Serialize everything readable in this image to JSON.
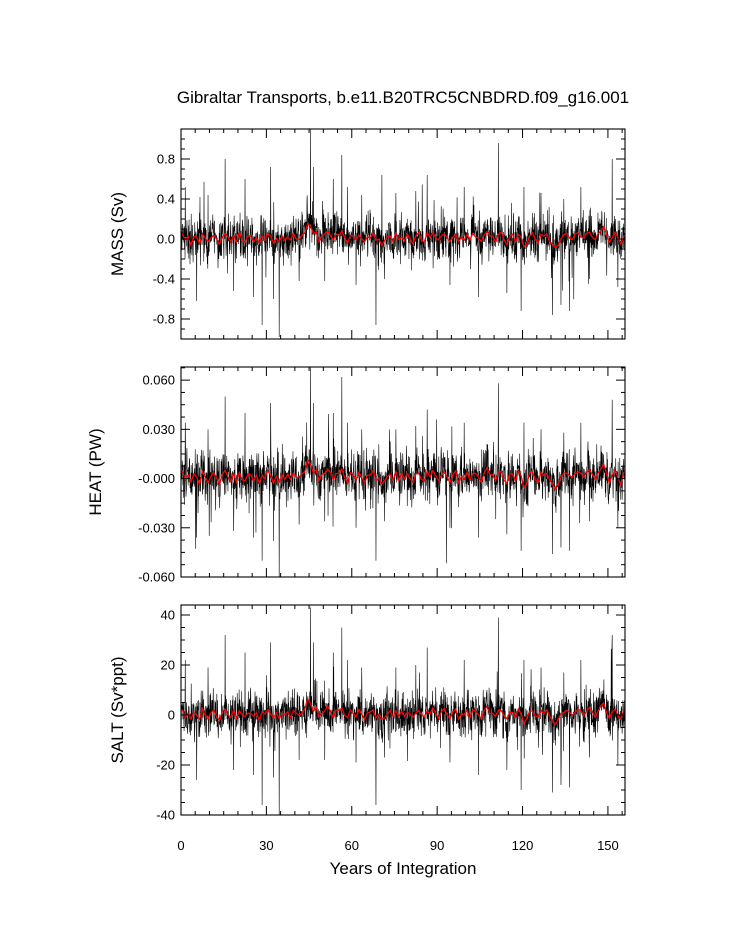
{
  "title": "Gibraltar Transports, b.e11.B20TRC5CNBDRD.f09_g16.001",
  "chart_data": {
    "type": "line",
    "title": "Gibraltar Transports, b.e11.B20TRC5CNBDRD.f09_g16.001",
    "xlabel": "Years of Integration",
    "xlim": [
      0,
      156
    ],
    "xticks": [
      0,
      30,
      60,
      90,
      120,
      150
    ],
    "xtick_labels": [
      "0",
      "30",
      "60",
      "90",
      "120",
      "150"
    ],
    "line_colors": {
      "raw": "#000000",
      "smoothed": "#ff0000"
    },
    "panels": [
      {
        "ylabel": "MASS (Sv)",
        "ylim": [
          -1.0,
          1.1
        ],
        "yticks": [
          0.8,
          0.4,
          0.0,
          -0.4,
          -0.8
        ],
        "ytick_labels": [
          "0.8",
          "0.4",
          "0.0",
          "-0.4",
          "-0.8"
        ],
        "base": [
          0.05,
          -0.02,
          0.03,
          -0.05,
          0.02,
          0.01,
          -0.04,
          0.06,
          0.0,
          -0.03,
          0.02,
          0.04,
          -0.01,
          -0.05,
          0.03,
          0.05,
          0.01,
          -0.02,
          0.04,
          -0.04,
          0.06,
          0.0,
          -0.03,
          0.02,
          0.03,
          -0.02,
          0.01,
          -0.05,
          0.04,
          0.0,
          0.05,
          0.02,
          -0.03,
          0.01,
          -0.04,
          0.03,
          0.0,
          0.02,
          -0.02,
          0.06,
          0.01,
          -0.01,
          0.03,
          0.07,
          0.16,
          0.12,
          0.05,
          0.08,
          -0.03,
          0.02,
          0.05,
          0.09,
          0.03,
          -0.02,
          0.06,
          0.04,
          0.07,
          0.01,
          -0.03,
          0.04,
          0.02,
          -0.01,
          0.05,
          0.0,
          -0.04,
          0.03,
          0.02,
          0.05,
          -0.02,
          0.01,
          -0.06,
          -0.03,
          0.02,
          0.04,
          -0.03,
          0.05,
          0.0,
          0.03,
          -0.02,
          0.04,
          0.01,
          -0.04,
          0.02,
          0.06,
          0.0,
          -0.03,
          0.05,
          0.02,
          0.07,
          0.01,
          -0.02,
          0.04,
          0.06,
          0.0,
          -0.03,
          0.03,
          0.05,
          -0.04,
          0.02,
          0.0,
          0.04,
          -0.02,
          0.06,
          0.03,
          0.0,
          -0.03,
          0.05,
          0.08,
          0.02,
          0.03,
          -0.02,
          0.04,
          0.06,
          0.0,
          -0.05,
          0.02,
          0.04,
          -0.02,
          0.05,
          0.01,
          -0.08,
          -0.04,
          0.03,
          0.05,
          0.0,
          -0.03,
          0.04,
          0.02,
          0.06,
          -0.02,
          -0.06,
          -0.09,
          -0.05,
          0.0,
          0.03,
          0.06,
          0.02,
          -0.01,
          0.04,
          0.07,
          0.03,
          0.0,
          0.05,
          0.08,
          0.02,
          -0.02,
          0.05,
          0.09,
          0.12,
          0.04,
          -0.03,
          0.02,
          0.06,
          0.01,
          -0.04,
          0.03,
          0.05,
          0.02
        ],
        "spikes": [
          [
            1,
            0.52
          ],
          [
            5,
            -0.62
          ],
          [
            9,
            0.44
          ],
          [
            15,
            0.8
          ],
          [
            18,
            -0.52
          ],
          [
            22,
            0.6
          ],
          [
            25,
            -0.58
          ],
          [
            28,
            -0.86
          ],
          [
            31,
            0.72
          ],
          [
            32,
            -0.6
          ],
          [
            34,
            -0.98
          ],
          [
            41,
            -0.42
          ],
          [
            45,
            1.1
          ],
          [
            46,
            0.72
          ],
          [
            50,
            -0.42
          ],
          [
            53,
            0.6
          ],
          [
            56,
            0.84
          ],
          [
            58,
            0.52
          ],
          [
            61,
            -0.46
          ],
          [
            63,
            0.44
          ],
          [
            68,
            -0.86
          ],
          [
            71,
            -0.4
          ],
          [
            75,
            0.46
          ],
          [
            82,
            0.48
          ],
          [
            86,
            0.64
          ],
          [
            94,
            -0.46
          ],
          [
            99,
            0.52
          ],
          [
            104,
            -0.58
          ],
          [
            111,
            0.96
          ],
          [
            114,
            -0.54
          ],
          [
            119,
            -0.72
          ],
          [
            120,
            0.52
          ],
          [
            126,
            0.46
          ],
          [
            130,
            -0.76
          ],
          [
            133,
            -0.66
          ],
          [
            134,
            0.4
          ],
          [
            136,
            -0.72
          ],
          [
            140,
            0.52
          ],
          [
            143,
            -0.4
          ],
          [
            151,
            0.8
          ],
          [
            153,
            -0.48
          ]
        ],
        "noise": 0.1,
        "smooth": 0.04
      },
      {
        "ylabel": "HEAT (PW)",
        "ylim": [
          -0.06,
          0.068
        ],
        "yticks": [
          0.06,
          0.03,
          0.0,
          -0.03,
          -0.06
        ],
        "ytick_labels": [
          "0.060",
          "0.030",
          "-0.000",
          "-0.030",
          "-0.060"
        ],
        "base": [
          0.004,
          -0.001,
          0.003,
          -0.002,
          0.002,
          0.001,
          -0.003,
          0.004,
          0.0,
          -0.002,
          0.002,
          0.003,
          0.0,
          -0.003,
          0.003,
          0.004,
          0.001,
          -0.001,
          0.003,
          -0.003,
          0.004,
          0.0,
          -0.002,
          0.002,
          0.003,
          -0.001,
          0.001,
          -0.003,
          0.003,
          0.0,
          0.004,
          0.002,
          -0.002,
          0.001,
          -0.003,
          0.003,
          0.0,
          0.002,
          -0.001,
          0.004,
          0.001,
          0.0,
          0.003,
          0.005,
          0.011,
          0.008,
          0.004,
          0.006,
          -0.002,
          0.002,
          0.004,
          0.006,
          0.003,
          -0.001,
          0.004,
          0.003,
          0.005,
          0.001,
          -0.002,
          0.003,
          0.002,
          0.0,
          0.004,
          0.0,
          -0.003,
          0.003,
          0.002,
          0.004,
          -0.001,
          0.001,
          -0.004,
          -0.002,
          0.002,
          0.003,
          -0.002,
          0.004,
          0.0,
          0.003,
          -0.001,
          0.003,
          0.001,
          -0.003,
          0.002,
          0.004,
          0.0,
          -0.002,
          0.004,
          0.002,
          0.005,
          0.001,
          -0.001,
          0.003,
          0.004,
          0.0,
          -0.002,
          0.003,
          0.004,
          -0.003,
          0.002,
          0.0,
          0.003,
          -0.001,
          0.004,
          0.003,
          0.0,
          -0.002,
          0.004,
          0.006,
          0.002,
          0.003,
          -0.001,
          0.003,
          0.004,
          0.0,
          -0.003,
          0.002,
          0.003,
          -0.001,
          0.004,
          0.001,
          -0.005,
          -0.003,
          0.003,
          0.004,
          0.0,
          -0.002,
          0.003,
          0.002,
          0.004,
          -0.001,
          -0.004,
          -0.006,
          -0.003,
          0.0,
          0.003,
          0.004,
          0.002,
          0.0,
          0.003,
          0.005,
          0.003,
          0.0,
          0.004,
          0.006,
          0.002,
          -0.001,
          0.004,
          0.006,
          0.008,
          0.003,
          -0.002,
          0.002,
          0.004,
          0.001,
          -0.003,
          0.003,
          0.004,
          0.002
        ],
        "spikes": [
          [
            1,
            0.034
          ],
          [
            5,
            -0.036
          ],
          [
            9,
            0.03
          ],
          [
            15,
            0.05
          ],
          [
            18,
            -0.032
          ],
          [
            22,
            0.04
          ],
          [
            25,
            -0.036
          ],
          [
            28,
            -0.05
          ],
          [
            31,
            0.046
          ],
          [
            32,
            -0.038
          ],
          [
            34,
            -0.062
          ],
          [
            41,
            -0.028
          ],
          [
            45,
            0.068
          ],
          [
            46,
            0.046
          ],
          [
            50,
            -0.026
          ],
          [
            53,
            0.04
          ],
          [
            56,
            0.062
          ],
          [
            58,
            0.034
          ],
          [
            61,
            -0.03
          ],
          [
            63,
            0.03
          ],
          [
            68,
            -0.05
          ],
          [
            71,
            -0.026
          ],
          [
            75,
            0.03
          ],
          [
            82,
            0.032
          ],
          [
            86,
            0.042
          ],
          [
            94,
            -0.03
          ],
          [
            99,
            0.034
          ],
          [
            104,
            -0.036
          ],
          [
            111,
            0.058
          ],
          [
            114,
            -0.034
          ],
          [
            119,
            -0.044
          ],
          [
            120,
            0.034
          ],
          [
            126,
            0.03
          ],
          [
            130,
            -0.046
          ],
          [
            133,
            -0.042
          ],
          [
            134,
            0.028
          ],
          [
            136,
            -0.044
          ],
          [
            140,
            0.034
          ],
          [
            143,
            -0.026
          ],
          [
            151,
            0.048
          ],
          [
            153,
            -0.03
          ]
        ],
        "noise": 0.007,
        "smooth": 0.003
      },
      {
        "ylabel": "SALT (Sv*ppt)",
        "ylim": [
          -40,
          44
        ],
        "yticks": [
          40,
          20,
          0,
          -20,
          -40
        ],
        "ytick_labels": [
          "40",
          "20",
          "0",
          "-20",
          "-40"
        ],
        "base": [
          1.8,
          -0.8,
          1.1,
          -1.9,
          0.7,
          0.4,
          -1.5,
          2.2,
          0.0,
          -1.1,
          0.8,
          1.5,
          -0.4,
          -1.9,
          1.1,
          1.9,
          0.4,
          -0.8,
          1.5,
          -1.5,
          2.2,
          0.0,
          -1.1,
          0.8,
          1.1,
          -0.8,
          0.4,
          -1.9,
          1.5,
          0.0,
          1.9,
          0.8,
          -1.1,
          0.4,
          -1.5,
          1.1,
          0.0,
          0.8,
          -0.8,
          2.2,
          0.4,
          -0.4,
          1.1,
          2.6,
          6.0,
          4.5,
          1.9,
          3.0,
          -1.1,
          0.8,
          1.9,
          3.4,
          1.1,
          -0.8,
          2.2,
          1.5,
          2.6,
          0.4,
          -1.1,
          1.5,
          0.8,
          -0.4,
          1.9,
          0.0,
          -1.5,
          1.1,
          0.8,
          1.9,
          -0.8,
          0.4,
          -2.2,
          -1.1,
          0.8,
          1.5,
          -1.1,
          1.9,
          0.0,
          1.1,
          -0.8,
          1.5,
          0.4,
          -1.5,
          0.8,
          2.2,
          0.0,
          -1.1,
          1.9,
          0.8,
          2.6,
          0.4,
          -0.8,
          1.5,
          2.2,
          0.0,
          -1.1,
          1.1,
          1.9,
          -1.5,
          0.8,
          0.0,
          1.5,
          -0.8,
          2.2,
          1.1,
          0.0,
          -1.1,
          1.9,
          3.0,
          0.8,
          1.1,
          -0.8,
          1.5,
          2.2,
          0.0,
          -1.9,
          0.8,
          1.5,
          -0.8,
          1.9,
          0.4,
          -3.0,
          -1.5,
          1.1,
          1.9,
          0.0,
          -1.1,
          1.5,
          0.8,
          2.2,
          -0.8,
          -2.2,
          -3.4,
          -1.9,
          0.0,
          1.1,
          2.2,
          0.8,
          -0.4,
          1.5,
          2.6,
          1.1,
          0.0,
          1.9,
          3.0,
          0.8,
          -0.8,
          1.9,
          3.4,
          4.5,
          1.5,
          -1.1,
          0.8,
          2.2,
          0.4,
          -1.5,
          1.1,
          1.9,
          0.8
        ],
        "spikes": [
          [
            1,
            22
          ],
          [
            5,
            -26
          ],
          [
            9,
            19
          ],
          [
            15,
            32
          ],
          [
            18,
            -22
          ],
          [
            22,
            25
          ],
          [
            25,
            -24
          ],
          [
            28,
            -36
          ],
          [
            31,
            29
          ],
          [
            32,
            -25
          ],
          [
            34,
            -41
          ],
          [
            41,
            -18
          ],
          [
            45,
            43
          ],
          [
            46,
            29
          ],
          [
            50,
            -18
          ],
          [
            53,
            25
          ],
          [
            56,
            35
          ],
          [
            58,
            22
          ],
          [
            61,
            -19
          ],
          [
            63,
            19
          ],
          [
            68,
            -36
          ],
          [
            71,
            -17
          ],
          [
            75,
            19
          ],
          [
            82,
            20
          ],
          [
            86,
            27
          ],
          [
            94,
            -19
          ],
          [
            99,
            22
          ],
          [
            104,
            -24
          ],
          [
            111,
            39
          ],
          [
            114,
            -22
          ],
          [
            119,
            -30
          ],
          [
            120,
            22
          ],
          [
            126,
            19
          ],
          [
            130,
            -31
          ],
          [
            133,
            -28
          ],
          [
            134,
            17
          ],
          [
            136,
            -29
          ],
          [
            140,
            22
          ],
          [
            143,
            -17
          ],
          [
            151,
            32
          ],
          [
            153,
            -20
          ]
        ],
        "noise": 4.0,
        "smooth": 1.6
      }
    ]
  }
}
